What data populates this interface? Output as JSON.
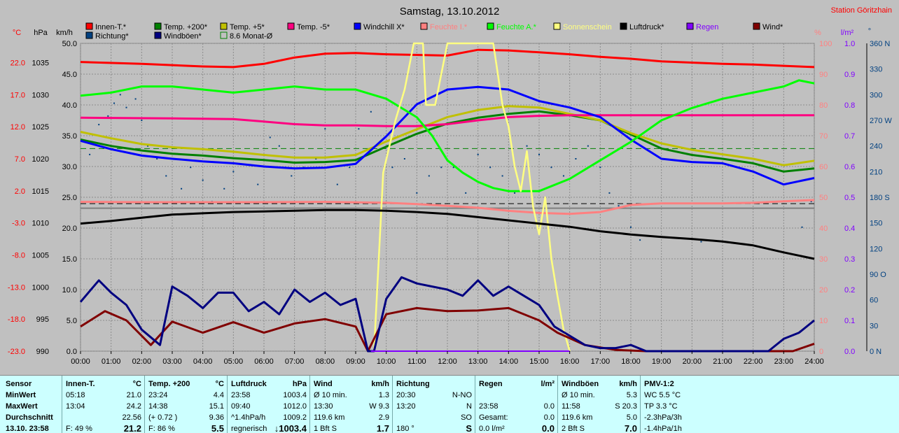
{
  "chart_data": {
    "type": "line",
    "title": "Samstag, 13.10.2012",
    "station": "Station Göritzhain",
    "x_ticks": [
      "00:00",
      "01:00",
      "02:00",
      "03:00",
      "04:00",
      "05:00",
      "06:00",
      "07:00",
      "08:00",
      "09:00",
      "10:00",
      "11:00",
      "12:00",
      "13:00",
      "14:00",
      "15:00",
      "16:00",
      "17:00",
      "18:00",
      "19:00",
      "20:00",
      "21:00",
      "22:00",
      "23:00",
      "24:00"
    ],
    "xlim": [
      0,
      24
    ],
    "axes": {
      "temp": {
        "unit": "°C",
        "ticks": [
          "22.0",
          "17.0",
          "12.0",
          "7.0",
          "2.0",
          "-3.0",
          "-8.0",
          "-13.0",
          "-18.0",
          "-23.0"
        ],
        "range": [
          -23,
          25
        ]
      },
      "pressure": {
        "unit": "hPa",
        "ticks": [
          "1035",
          "1030",
          "1025",
          "1020",
          "1015",
          "1010",
          "1005",
          "1000",
          "995",
          "990"
        ],
        "range": [
          990,
          1038
        ]
      },
      "wind": {
        "unit": "km/h",
        "ticks": [
          "50.0",
          "45.0",
          "40.0",
          "35.0",
          "30.0",
          "25.0",
          "20.0",
          "15.0",
          "10.0",
          "5.0",
          "0.0"
        ],
        "range": [
          0,
          50
        ]
      },
      "humidity": {
        "unit": "%",
        "ticks": [
          "100",
          "90",
          "80",
          "70",
          "60",
          "50",
          "40",
          "30",
          "20",
          "10",
          "0"
        ],
        "range": [
          0,
          100
        ]
      },
      "rain": {
        "unit": "l/m²",
        "ticks": [
          "1.0",
          "0.9",
          "0.8",
          "0.7",
          "0.6",
          "0.5",
          "0.4",
          "0.3",
          "0.2",
          "0.1",
          "0.0"
        ],
        "range": [
          0,
          1
        ]
      },
      "direction": {
        "unit": "°",
        "ticks": [
          "360 N",
          "330",
          "300",
          "270 W",
          "240",
          "210",
          "180 S",
          "150",
          "120",
          "90 O",
          "60",
          "30",
          "0 N"
        ],
        "range": [
          0,
          360
        ]
      }
    },
    "legend": [
      {
        "name": "Innen-T.*",
        "color": "#ff0000"
      },
      {
        "name": "Temp. +200*",
        "color": "#008000"
      },
      {
        "name": "Temp. +5*",
        "color": "#c0c000"
      },
      {
        "name": "Temp. -5*",
        "color": "#ff0080"
      },
      {
        "name": "Windchill X*",
        "color": "#0000ff"
      },
      {
        "name": "Feuchte I.*",
        "color": "#ff8080"
      },
      {
        "name": "Feuchte A.*",
        "color": "#00ff00"
      },
      {
        "name": "Sonnenschein",
        "color": "#ffff80"
      },
      {
        "name": "Luftdruck*",
        "color": "#000000"
      },
      {
        "name": "Regen",
        "color": "#8000ff"
      },
      {
        "name": "Wind*",
        "color": "#800000"
      },
      {
        "name": "Richtung*",
        "color": "#004080"
      },
      {
        "name": "Windböen*",
        "color": "#000080"
      },
      {
        "name": "8.6 Monat-Ø",
        "color": "#008000"
      }
    ],
    "series": [
      {
        "name": "Innen-T.*",
        "axis": "temp",
        "color": "#ff0000",
        "x": [
          0,
          2,
          4,
          5,
          6,
          7,
          8,
          9,
          10,
          11,
          12,
          13,
          14,
          15,
          16,
          17,
          18,
          19,
          20,
          21,
          22,
          23,
          24
        ],
        "values": [
          22.1,
          21.8,
          21.4,
          21.3,
          21.8,
          22.8,
          23.4,
          23.5,
          23.3,
          23.2,
          23.1,
          24.0,
          23.9,
          23.6,
          23.3,
          22.9,
          22.6,
          22.2,
          22.0,
          21.8,
          21.7,
          21.5,
          21.3
        ]
      },
      {
        "name": "Temp. +200*",
        "axis": "temp",
        "color": "#008000",
        "x": [
          0,
          1,
          2,
          3,
          4,
          5,
          6,
          7,
          8,
          9,
          10,
          11,
          12,
          13,
          14,
          15,
          16,
          17,
          18,
          19,
          20,
          21,
          22,
          23,
          24
        ],
        "values": [
          10.0,
          9.0,
          8.3,
          7.8,
          7.5,
          7.1,
          6.8,
          6.4,
          6.5,
          6.8,
          8.9,
          10.9,
          12.5,
          13.4,
          14.0,
          14.4,
          13.8,
          13.0,
          10.8,
          8.6,
          7.6,
          7.0,
          6.3,
          5.0,
          5.5
        ]
      },
      {
        "name": "Temp. +5*",
        "axis": "temp",
        "color": "#c0c000",
        "x": [
          0,
          1,
          2,
          3,
          4,
          5,
          6,
          7,
          8,
          9,
          10,
          11,
          12,
          13,
          14,
          15,
          16,
          17,
          18,
          19,
          20,
          21,
          22,
          23,
          24
        ],
        "values": [
          11.2,
          10.2,
          9.3,
          8.8,
          8.5,
          8.1,
          7.6,
          7.2,
          7.2,
          7.6,
          9.7,
          11.6,
          13.5,
          14.6,
          15.2,
          15.0,
          14.0,
          13.0,
          11.0,
          9.4,
          8.4,
          7.7,
          7.0,
          6.0,
          6.7
        ]
      },
      {
        "name": "Temp. -5*",
        "axis": "temp",
        "color": "#ff0080",
        "x": [
          0,
          3,
          5,
          6,
          7,
          8,
          9,
          10,
          11,
          12,
          13,
          14,
          15,
          16,
          17,
          18,
          19,
          20,
          21,
          22,
          23,
          24
        ],
        "values": [
          13.4,
          13.3,
          13.2,
          12.8,
          12.4,
          12.2,
          12.2,
          12.1,
          12.1,
          12.4,
          13.0,
          13.5,
          13.7,
          13.8,
          13.8,
          13.8,
          13.8,
          13.8,
          13.8,
          13.8,
          13.8,
          13.8
        ]
      },
      {
        "name": "Windchill X*",
        "axis": "temp",
        "color": "#0000ff",
        "x": [
          0,
          1,
          2,
          3,
          4,
          5,
          6,
          7,
          8,
          9,
          10,
          11,
          12,
          13,
          14,
          15,
          16,
          17,
          18,
          19,
          20,
          21,
          22,
          23,
          24
        ],
        "values": [
          9.8,
          8.5,
          7.5,
          7.0,
          6.6,
          6.3,
          5.8,
          5.5,
          5.6,
          6.2,
          10.5,
          15.5,
          17.8,
          18.2,
          17.8,
          16.0,
          15.0,
          13.5,
          10.0,
          7.0,
          6.5,
          6.3,
          5.0,
          3.0,
          4.0
        ]
      },
      {
        "name": "Feuchte I.*",
        "axis": "humidity",
        "color": "#ff8080",
        "x": [
          0,
          2,
          4,
          6,
          8,
          10,
          11,
          12,
          13,
          14,
          15,
          16,
          17,
          18,
          19,
          20,
          21,
          22,
          23,
          24
        ],
        "values": [
          48.5,
          48.4,
          48.4,
          48.4,
          48.5,
          48.2,
          47.8,
          47.2,
          46.6,
          45.6,
          44.9,
          44.6,
          45.2,
          47.5,
          48.0,
          48.0,
          48.0,
          48.2,
          48.7,
          49.1
        ]
      },
      {
        "name": "Feuchte A.*",
        "axis": "humidity",
        "color": "#00ff00",
        "x": [
          0,
          1,
          2,
          3,
          4,
          5,
          6,
          7,
          8,
          9,
          10,
          10.5,
          11,
          11.5,
          12,
          12.5,
          13,
          13.5,
          14,
          14.5,
          15,
          16,
          17,
          18,
          19,
          20,
          21,
          22,
          23,
          23.5,
          24
        ],
        "values": [
          83,
          84,
          86,
          86,
          85,
          84,
          85,
          86,
          85,
          85,
          82,
          79,
          76,
          70,
          62,
          58,
          55,
          53,
          52,
          52,
          52,
          56,
          62,
          68,
          75,
          79,
          82,
          84,
          86,
          88,
          87
        ]
      },
      {
        "name": "Sonnenschein",
        "axis": "humidity",
        "color": "#ffff80",
        "x": [
          9.6,
          9.9,
          10.3,
          10.6,
          10.9,
          11.2,
          11.3,
          11.6,
          12,
          12.3,
          12.6,
          12.9,
          13.2,
          13.5,
          13.8,
          14.0,
          14.2,
          14.4,
          14.6,
          14.8,
          15.0,
          15.2,
          15.4,
          15.6,
          15.8,
          16.0
        ],
        "values": [
          0,
          58,
          75,
          85,
          100,
          100,
          80,
          80,
          100,
          100,
          100,
          100,
          100,
          100,
          80,
          73,
          60,
          52,
          65,
          47,
          38,
          50,
          30,
          18,
          7,
          0
        ]
      },
      {
        "name": "Luftdruck*",
        "axis": "pressure",
        "color": "#000000",
        "x": [
          0,
          1,
          2,
          3,
          4,
          5,
          6,
          7,
          8,
          9,
          10,
          11,
          12,
          13,
          14,
          15,
          16,
          17,
          18,
          19,
          20,
          21,
          22,
          23,
          24
        ],
        "values": [
          1009.9,
          1010.3,
          1010.8,
          1011.3,
          1011.5,
          1011.7,
          1011.8,
          1011.9,
          1012.0,
          1012.0,
          1011.9,
          1011.7,
          1011.4,
          1010.9,
          1010.4,
          1009.9,
          1009.4,
          1008.7,
          1008.2,
          1007.8,
          1007.5,
          1007.1,
          1006.5,
          1005.4,
          1004.4
        ]
      },
      {
        "name": "Wind*",
        "axis": "wind",
        "color": "#800000",
        "x": [
          0,
          0.8,
          1.5,
          2.3,
          3.0,
          4.0,
          5.0,
          6.0,
          7.0,
          8.0,
          9.0,
          9.4,
          10.0,
          11.0,
          12.0,
          13.0,
          14.0,
          15.0,
          15.6,
          16.5,
          17.5,
          18.5,
          19.5,
          22.5,
          23.3,
          24
        ],
        "values": [
          4.0,
          6.5,
          5.0,
          1.0,
          4.8,
          3.0,
          4.7,
          3.0,
          4.5,
          5.2,
          4.0,
          0,
          6.0,
          7.0,
          6.5,
          6.6,
          7.0,
          5.0,
          3.0,
          1.0,
          0.2,
          0,
          0,
          0,
          0,
          1.2
        ]
      },
      {
        "name": "Windböen*",
        "axis": "wind",
        "color": "#000080",
        "x": [
          0,
          0.6,
          1.0,
          1.5,
          2.0,
          2.6,
          3.0,
          3.5,
          4.0,
          4.5,
          5.0,
          5.5,
          6.0,
          6.5,
          7.0,
          7.5,
          8.0,
          8.5,
          9.0,
          9.4,
          9.6,
          10.0,
          10.5,
          11.0,
          11.5,
          12.0,
          12.5,
          13.0,
          13.5,
          14.0,
          14.5,
          15.0,
          15.5,
          16.0,
          16.5,
          17.0,
          17.5,
          18.0,
          18.5,
          19.0,
          20.0,
          20.5,
          22.5,
          23.0,
          23.5,
          24
        ],
        "values": [
          8.0,
          11.5,
          9.5,
          7.5,
          3.5,
          1.0,
          10.5,
          9.0,
          7.0,
          9.5,
          9.5,
          6.5,
          8.0,
          6.0,
          10.0,
          8.0,
          9.5,
          7.5,
          8.5,
          0,
          0,
          8.5,
          12.0,
          11.0,
          10.5,
          10.0,
          9.0,
          11.5,
          9.0,
          10.5,
          9.0,
          7.5,
          4.0,
          2.5,
          1.0,
          0.5,
          0.5,
          1.0,
          0,
          0,
          0,
          0,
          0,
          2.0,
          3.0,
          5.0
        ]
      },
      {
        "name": "Regen",
        "axis": "rain",
        "color": "#8000ff",
        "x": [
          9.5,
          16.0
        ],
        "values": [
          0,
          0
        ]
      }
    ],
    "reference_lines": [
      {
        "name": "8.6 Monat-Ø",
        "axis": "temp",
        "value": 8.6,
        "style": "dashed",
        "color": "#008000"
      },
      {
        "name": "0 °C",
        "axis": "temp",
        "value": 0.0,
        "style": "dashed",
        "color": "#000000"
      }
    ],
    "scatter": {
      "name": "Richtung*",
      "axis": "direction",
      "color": "#004080",
      "x": [
        0.3,
        0.6,
        0.9,
        1.1,
        1.3,
        1.5,
        1.8,
        2.0,
        2.2,
        2.5,
        2.8,
        3.0,
        3.3,
        3.6,
        4.0,
        4.3,
        4.7,
        5.0,
        5.4,
        5.8,
        6.2,
        6.5,
        6.9,
        7.3,
        7.7,
        8.0,
        8.4,
        8.8,
        9.1,
        9.5,
        9.8,
        10.2,
        10.6,
        11.0,
        11.4,
        11.8,
        12.2,
        12.6,
        13.0,
        13.4,
        13.8,
        14.2,
        14.6,
        15.0,
        15.4,
        15.8,
        16.2,
        16.6,
        17.0,
        17.3,
        17.6,
        18.0,
        18.3,
        20.3,
        23.6,
        23.9
      ],
      "values": [
        230,
        265,
        275,
        290,
        300,
        285,
        295,
        270,
        240,
        225,
        205,
        160,
        190,
        215,
        200,
        175,
        190,
        210,
        225,
        195,
        250,
        240,
        205,
        215,
        225,
        260,
        195,
        215,
        260,
        280,
        245,
        215,
        225,
        185,
        205,
        215,
        215,
        185,
        230,
        215,
        205,
        185,
        240,
        230,
        215,
        205,
        225,
        240,
        215,
        185,
        170,
        145,
        130,
        128,
        145,
        175
      ]
    }
  },
  "stats": {
    "columns": [
      {
        "header": [
          "Sensor"
        ],
        "rows": [
          [
            "MinWert"
          ],
          [
            "MaxWert"
          ],
          [
            "Durchschnitt"
          ],
          [
            "13.10. 23:58"
          ]
        ]
      },
      {
        "header": [
          "Innen-T.",
          "°C"
        ],
        "rows": [
          [
            "05:18",
            "21.0"
          ],
          [
            "13:04",
            "24.2"
          ],
          [
            "",
            "22.56"
          ],
          [
            "F: 49 %",
            "21.2"
          ]
        ]
      },
      {
        "header": [
          "Temp. +200",
          "°C"
        ],
        "rows": [
          [
            "23:24",
            "4.4"
          ],
          [
            "14:38",
            "15.1"
          ],
          [
            "(+ 0.72 )",
            "9.36"
          ],
          [
            "F: 86 %",
            "5.5"
          ]
        ]
      },
      {
        "header": [
          "Luftdruck",
          "hPa"
        ],
        "rows": [
          [
            "23:58",
            "1003.4"
          ],
          [
            "09:40",
            "1012.0"
          ],
          [
            "^1.4hPa/h",
            "1009.2"
          ],
          [
            "regnerisch",
            "↓1003.4"
          ]
        ]
      },
      {
        "header": [
          "Wind",
          "km/h"
        ],
        "rows": [
          [
            "Ø 10 min.",
            "1.3"
          ],
          [
            "13:30",
            "W 9.3"
          ],
          [
            "119.6 km",
            "2.9"
          ],
          [
            "1 Bft S",
            "1.7"
          ]
        ]
      },
      {
        "header": [
          "Richtung",
          ""
        ],
        "rows": [
          [
            "20:30",
            "N-NO"
          ],
          [
            "13:20",
            "N"
          ],
          [
            "",
            "SO"
          ],
          [
            "180 °",
            "S"
          ]
        ]
      },
      {
        "header": [
          "Regen",
          "l/m²"
        ],
        "rows": [
          [
            "",
            ""
          ],
          [
            "23:58",
            "0.0"
          ],
          [
            "Gesamt:",
            "0.0"
          ],
          [
            "0.0 l/m²",
            "0.0"
          ]
        ]
      },
      {
        "header": [
          "Windböen",
          "km/h"
        ],
        "rows": [
          [
            "Ø 10 min.",
            "5.3"
          ],
          [
            "11:58",
            "S 20.3"
          ],
          [
            "119.6 km",
            "5.0"
          ],
          [
            "2 Bft S",
            "7.0"
          ]
        ]
      },
      {
        "header": [
          "PMV-1:2",
          ""
        ],
        "rows": [
          [
            "WC 5.5 °C",
            ""
          ],
          [
            "TP 3.3 °C",
            ""
          ],
          [
            "-2.3hPa/3h",
            ""
          ],
          [
            "-1.4hPa/1h",
            ""
          ]
        ]
      }
    ]
  }
}
